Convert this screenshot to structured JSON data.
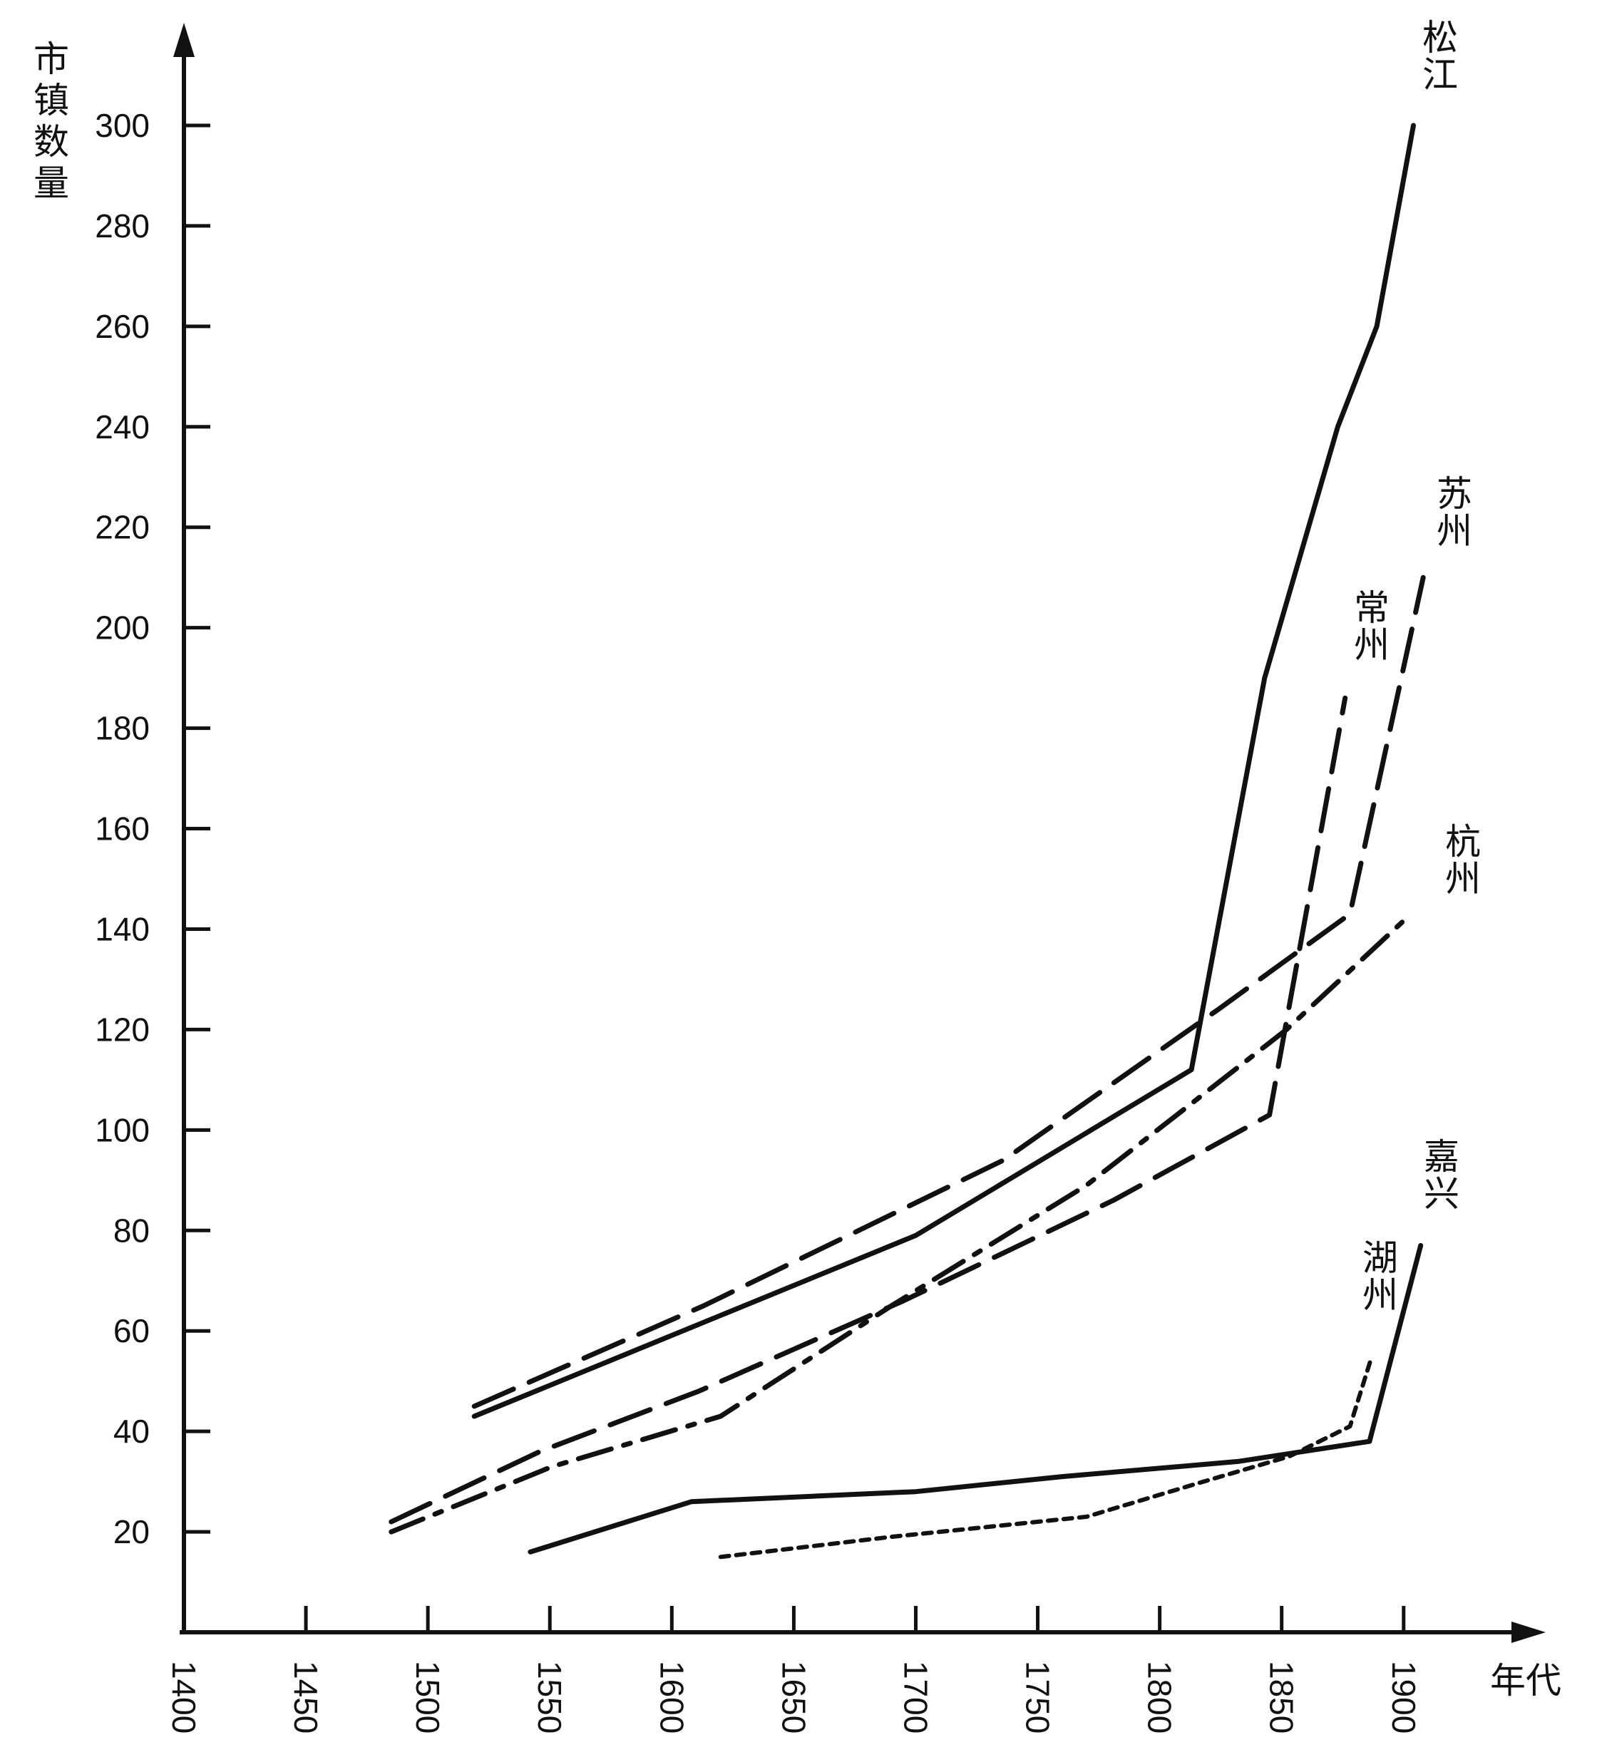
{
  "chart_data": {
    "type": "line",
    "title": "",
    "ylabel": "市镇数量",
    "xlabel": "年代",
    "xlim": [
      1400,
      1910
    ],
    "ylim": [
      0,
      320
    ],
    "xticks": [
      "1400",
      "1450",
      "1500",
      "1550",
      "1600",
      "1650",
      "1700",
      "1750",
      "1800",
      "1850",
      "1900"
    ],
    "yticks": [
      "20",
      "40",
      "60",
      "80",
      "100",
      "120",
      "140",
      "160",
      "180",
      "200",
      "220",
      "240",
      "260",
      "280",
      "300"
    ],
    "grid": false,
    "legend": "none",
    "series": [
      {
        "name": "松江",
        "style": "solid",
        "x": [
          1519,
          1700,
          1813,
          1843,
          1873,
          1889,
          1904
        ],
        "y": [
          43,
          79,
          112,
          190,
          240,
          260,
          300
        ]
      },
      {
        "name": "苏州",
        "style": "dashed",
        "x": [
          1519,
          1613,
          1736,
          1824,
          1878,
          1908
        ],
        "y": [
          45,
          65,
          94,
          124,
          143,
          210
        ]
      },
      {
        "name": "常州",
        "style": "dashed",
        "x": [
          1485,
          1546,
          1611,
          1695,
          1781,
          1845,
          1876
        ],
        "y": [
          22,
          36,
          48,
          66,
          86,
          103,
          186
        ]
      },
      {
        "name": "杭州",
        "style": "dashdot",
        "x": [
          1485,
          1551,
          1620,
          1690,
          1770,
          1852,
          1903
        ],
        "y": [
          20,
          33,
          43,
          65,
          89,
          120,
          143
        ]
      },
      {
        "name": "嘉兴",
        "style": "solid",
        "x": [
          1542,
          1608,
          1700,
          1760,
          1832,
          1886,
          1907
        ],
        "y": [
          16,
          26,
          28,
          31,
          34,
          38,
          77
        ]
      },
      {
        "name": "湖州",
        "style": "dotted",
        "x": [
          1620,
          1690,
          1770,
          1818,
          1853,
          1878,
          1887
        ],
        "y": [
          15,
          19,
          23,
          30,
          35,
          41,
          55
        ]
      }
    ]
  }
}
